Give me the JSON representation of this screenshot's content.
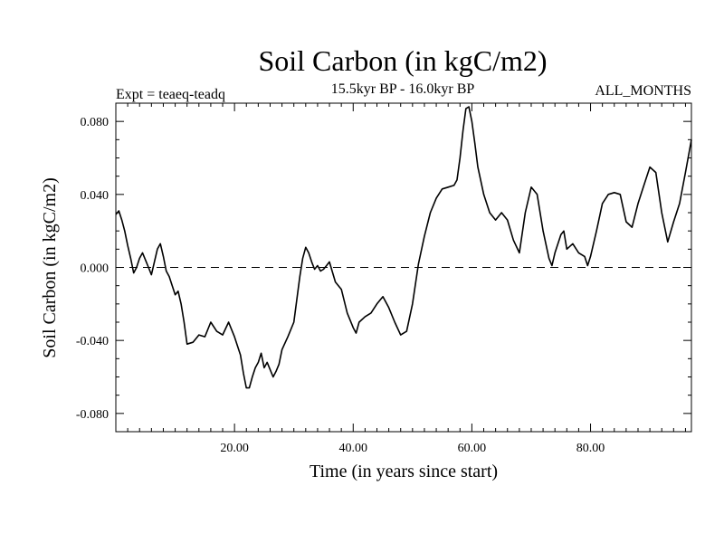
{
  "chart_data": {
    "type": "line",
    "title": "Soil Carbon (in kgC/m2)",
    "subtitle": "15.5kyr BP - 16.0kyr BP",
    "left_note": "Expt = teaeq-teadq",
    "right_note": "ALL_MONTHS",
    "xlabel": "Time (in years since start)",
    "ylabel": "Soil Carbon (in kgC/m2)",
    "xlim": [
      0,
      97
    ],
    "ylim": [
      -0.09,
      0.09
    ],
    "x_ticks": [
      20,
      40,
      60,
      80
    ],
    "x_tick_labels": [
      "20.00",
      "40.00",
      "60.00",
      "80.00"
    ],
    "y_ticks": [
      -0.08,
      -0.04,
      0.0,
      0.04,
      0.08
    ],
    "y_tick_labels": [
      "-0.080",
      "-0.040",
      "0.000",
      "0.040",
      "0.080"
    ],
    "reference_line": 0.0,
    "series": [
      {
        "color": "#000000",
        "x": [
          0.0,
          0.5,
          1.0,
          1.5,
          2.0,
          2.5,
          3.0,
          3.5,
          4.0,
          4.5,
          5.0,
          5.5,
          6.0,
          6.5,
          7.0,
          7.5,
          8.0,
          8.5,
          9.0,
          9.5,
          10.0,
          10.5,
          11.0,
          11.5,
          12.0,
          13.0,
          14.0,
          15.0,
          16.0,
          17.0,
          18.0,
          19.0,
          20.0,
          21.0,
          21.5,
          22.0,
          22.5,
          23.0,
          23.5,
          24.0,
          24.5,
          25.0,
          25.5,
          26.0,
          26.5,
          27.0,
          27.5,
          28.0,
          29.0,
          30.0,
          31.0,
          31.5,
          32.0,
          32.5,
          33.0,
          33.5,
          34.0,
          34.5,
          35.0,
          35.5,
          36.0,
          37.0,
          38.0,
          39.0,
          40.0,
          40.5,
          41.0,
          42.0,
          43.0,
          44.0,
          45.0,
          46.0,
          47.0,
          48.0,
          49.0,
          50.0,
          51.0,
          52.0,
          53.0,
          54.0,
          55.0,
          56.0,
          57.0,
          57.5,
          58.0,
          58.5,
          59.0,
          59.5,
          60.0,
          60.5,
          61.0,
          62.0,
          63.0,
          64.0,
          65.0,
          66.0,
          67.0,
          68.0,
          69.0,
          70.0,
          71.0,
          72.0,
          73.0,
          73.5,
          74.0,
          75.0,
          75.5,
          76.0,
          77.0,
          78.0,
          79.0,
          79.5,
          80.0,
          81.0,
          82.0,
          83.0,
          84.0,
          85.0,
          86.0,
          87.0,
          88.0,
          89.0,
          90.0,
          91.0,
          92.0,
          93.0,
          94.0,
          95.0,
          96.0,
          97.0
        ],
        "y": [
          0.029,
          0.031,
          0.026,
          0.02,
          0.012,
          0.005,
          -0.003,
          0.0,
          0.005,
          0.008,
          0.004,
          0.0,
          -0.004,
          0.003,
          0.01,
          0.013,
          0.006,
          -0.002,
          -0.005,
          -0.01,
          -0.015,
          -0.013,
          -0.02,
          -0.03,
          -0.042,
          -0.041,
          -0.037,
          -0.038,
          -0.03,
          -0.035,
          -0.037,
          -0.03,
          -0.038,
          -0.048,
          -0.058,
          -0.066,
          -0.066,
          -0.06,
          -0.055,
          -0.052,
          -0.047,
          -0.055,
          -0.052,
          -0.056,
          -0.06,
          -0.057,
          -0.053,
          -0.045,
          -0.038,
          -0.03,
          -0.005,
          0.005,
          0.011,
          0.008,
          0.003,
          -0.001,
          0.001,
          -0.002,
          -0.001,
          0.001,
          0.003,
          -0.008,
          -0.012,
          -0.025,
          -0.033,
          -0.036,
          -0.03,
          -0.027,
          -0.025,
          -0.02,
          -0.016,
          -0.022,
          -0.03,
          -0.037,
          -0.035,
          -0.02,
          0.002,
          0.017,
          0.03,
          0.038,
          0.043,
          0.044,
          0.045,
          0.048,
          0.06,
          0.075,
          0.087,
          0.088,
          0.08,
          0.068,
          0.055,
          0.04,
          0.03,
          0.026,
          0.03,
          0.026,
          0.015,
          0.008,
          0.03,
          0.044,
          0.04,
          0.02,
          0.005,
          0.001,
          0.008,
          0.018,
          0.02,
          0.01,
          0.013,
          0.008,
          0.006,
          0.001,
          0.006,
          0.02,
          0.035,
          0.04,
          0.041,
          0.04,
          0.025,
          0.022,
          0.035,
          0.045,
          0.055,
          0.052,
          0.03,
          0.014,
          0.025,
          0.035,
          0.052,
          0.07
        ]
      }
    ]
  }
}
